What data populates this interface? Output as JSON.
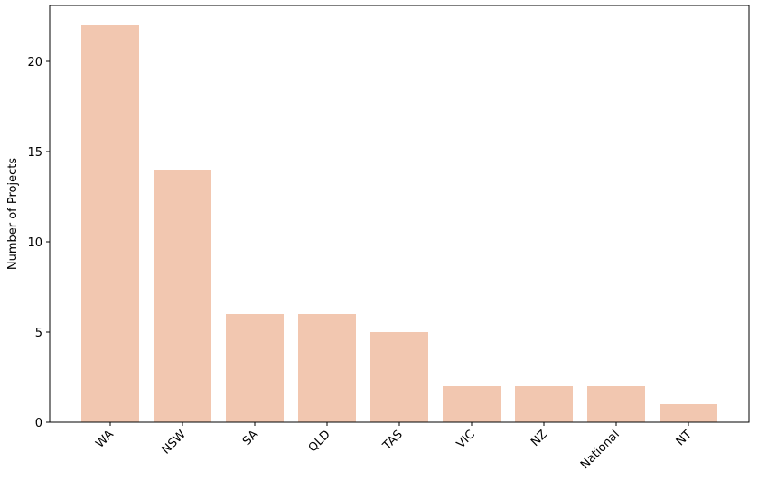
{
  "chart_data": {
    "type": "bar",
    "ylabel": "Number of Projects",
    "categories": [
      "WA",
      "NSW",
      "SA",
      "QLD",
      "TAS",
      "VIC",
      "NZ",
      "National",
      "NT"
    ],
    "values": [
      22,
      14,
      6,
      6,
      5,
      2,
      2,
      2,
      1
    ],
    "color": "#f2c7b0",
    "ylim": [
      0,
      23.1
    ],
    "yticks": [
      0,
      5,
      10,
      15,
      20
    ]
  }
}
